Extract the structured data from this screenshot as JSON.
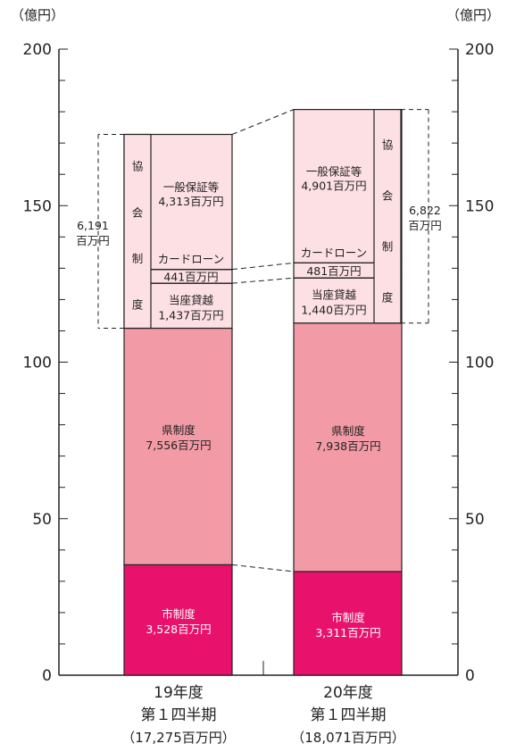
{
  "chart_data": {
    "type": "bar",
    "stacked": true,
    "unit_left": "（億円）",
    "unit_right": "（億円）",
    "ylim": [
      0,
      200
    ],
    "yticks": [
      "0",
      "50",
      "100",
      "150",
      "200"
    ],
    "categories": [
      {
        "line1": "19年度",
        "line2": "第１四半期",
        "line3": "（17,275百万円）"
      },
      {
        "line1": "20年度",
        "line2": "第１四半期",
        "line3": "（18,071百万円）"
      }
    ],
    "series": [
      {
        "name": "市制度",
        "label": "市制度",
        "values_label": [
          "3,528百万円",
          "3,311百万円"
        ],
        "values": [
          35.28,
          33.11
        ],
        "color": "#e8126c"
      },
      {
        "name": "県制度",
        "label": "県制度",
        "values_label": [
          "7,556百万円",
          "7,938百万円"
        ],
        "values": [
          75.56,
          79.38
        ],
        "color": "#f29aa6"
      },
      {
        "name": "当座貸越",
        "label": "当座貸越",
        "values_label": [
          "1,437百万円",
          "1,440百万円"
        ],
        "values": [
          14.37,
          14.4
        ],
        "color": "#fde0e4"
      },
      {
        "name": "カードローン",
        "label": "カードローン",
        "values_label": [
          "441百万円",
          "481百万円"
        ],
        "values": [
          4.41,
          4.81
        ],
        "color": "#fde0e4"
      },
      {
        "name": "一般保証等",
        "label": "一般保証等",
        "values_label": [
          "4,313百万円",
          "4,901百万円"
        ],
        "values": [
          43.13,
          49.01
        ],
        "color": "#fde0e4"
      }
    ],
    "association": {
      "label_chars": [
        "協",
        "会",
        "制",
        "度"
      ],
      "totals_line1": [
        "6,191",
        "6,822"
      ],
      "totals_line2": [
        "百万円",
        "百万円"
      ]
    }
  }
}
